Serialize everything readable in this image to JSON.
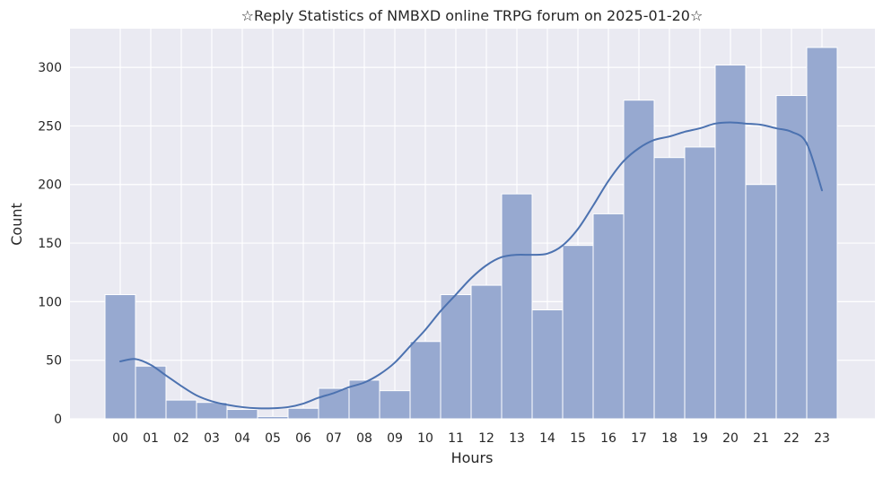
{
  "chart_data": {
    "type": "bar",
    "title": "☆Reply Statistics of NMBXD online TRPG forum on 2025-01-20☆",
    "xlabel": "Hours",
    "ylabel": "Count",
    "categories": [
      "00",
      "01",
      "02",
      "03",
      "04",
      "05",
      "06",
      "07",
      "08",
      "09",
      "10",
      "11",
      "12",
      "13",
      "14",
      "15",
      "16",
      "17",
      "18",
      "19",
      "20",
      "21",
      "22",
      "23"
    ],
    "values": [
      106,
      45,
      16,
      14,
      8,
      2,
      9,
      26,
      33,
      24,
      66,
      106,
      114,
      192,
      93,
      148,
      175,
      272,
      223,
      232,
      302,
      200,
      276,
      317
    ],
    "yticks": [
      0,
      50,
      100,
      150,
      200,
      250,
      300
    ],
    "ylim": [
      0,
      333
    ],
    "grid": true,
    "kde": {
      "x": [
        0,
        0.5,
        1,
        1.5,
        2,
        2.5,
        3,
        3.5,
        4,
        4.5,
        5,
        5.5,
        6,
        6.5,
        7,
        7.5,
        8,
        8.5,
        9,
        9.5,
        10,
        10.5,
        11,
        11.5,
        12,
        12.5,
        13,
        13.5,
        14,
        14.5,
        15,
        15.5,
        16,
        16.5,
        17,
        17.5,
        18,
        18.5,
        19,
        19.5,
        20,
        20.5,
        21,
        21.5,
        22,
        22.5,
        23
      ],
      "y": [
        49,
        51,
        46,
        37,
        28,
        20,
        15,
        12,
        10,
        9,
        9,
        10,
        13,
        18,
        22,
        27,
        31,
        38,
        48,
        62,
        76,
        92,
        106,
        120,
        131,
        138,
        140,
        140,
        141,
        148,
        162,
        182,
        203,
        220,
        231,
        238,
        241,
        245,
        248,
        252,
        253,
        252,
        251,
        248,
        245,
        235,
        195
      ]
    },
    "colors": {
      "bar_fill": "#97a9d0",
      "bar_edge": "#ffffff",
      "kde_line": "#4c72b0",
      "plot_background": "#eaeaf2",
      "grid": "#ffffff",
      "text": "#262626"
    }
  }
}
